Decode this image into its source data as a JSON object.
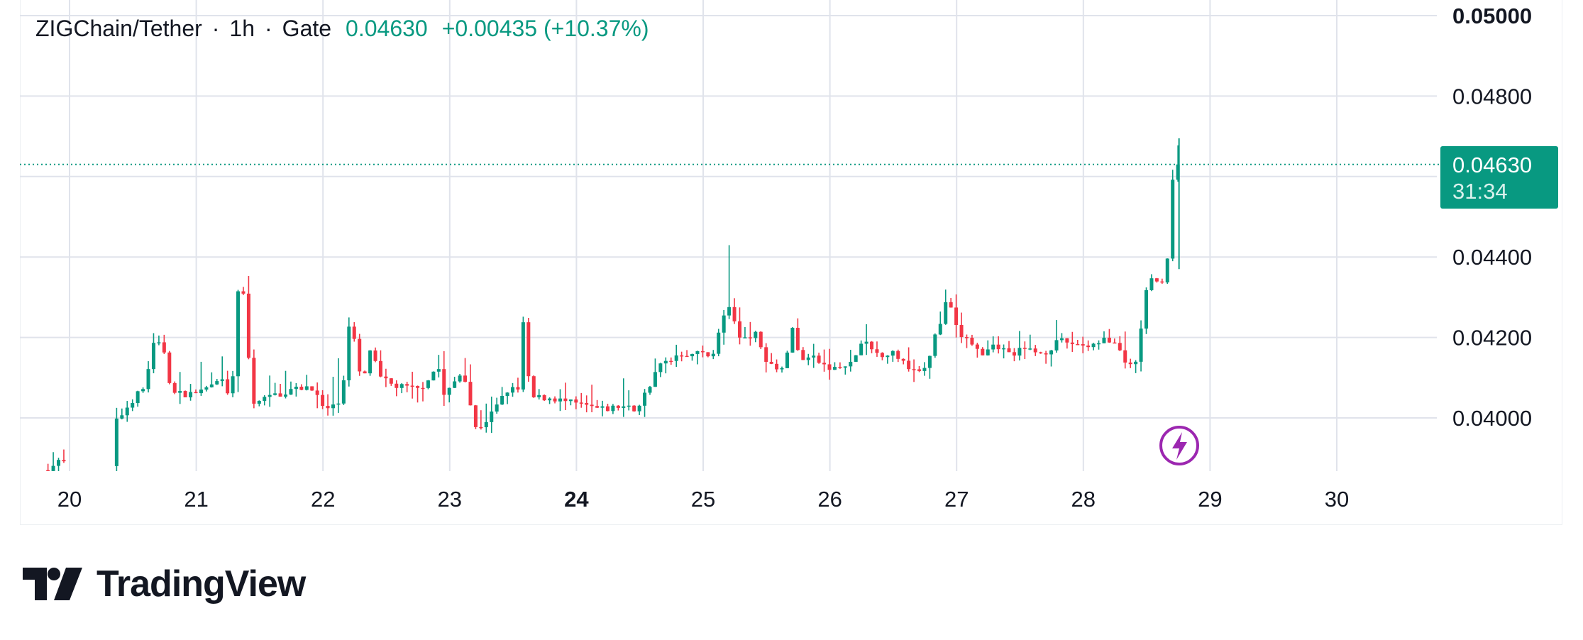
{
  "legend": {
    "symbol": "ZIGChain/Tether",
    "interval": "1h",
    "exchange": "Gate",
    "last_price": "0.04630",
    "change": "+0.00435 (+10.37%)",
    "separator": "·"
  },
  "price_label": {
    "price": "0.04630",
    "countdown": "31:34"
  },
  "brand": {
    "name": "TradingView"
  },
  "colors": {
    "up": "#089981",
    "down": "#f23645",
    "grid": "#e0e3eb",
    "text": "#131722",
    "event_marker": "#9c27b0"
  },
  "icons": {
    "event_marker": "lightning-bolt-icon",
    "logo": "tradingview-logo-icon"
  },
  "chart_data": {
    "type": "candlestick",
    "pair": "ZIGChain/Tether",
    "interval": "1h",
    "exchange": "Gate",
    "x_tick_labels": [
      "20",
      "21",
      "22",
      "23",
      "24",
      "25",
      "26",
      "27",
      "28",
      "29",
      "30"
    ],
    "x_tick_bold": "24",
    "y_tick_labels": [
      "0.04000",
      "0.04200",
      "0.04400",
      "0.04800",
      "0.05000"
    ],
    "y_tick_bold": "0.05000",
    "ylim": [
      0.0386,
      0.05
    ],
    "xlim": [
      19.8,
      30.8
    ],
    "last_price": 0.0463,
    "grid": true,
    "anchors": [
      [
        19.83,
        0.0387
      ],
      [
        19.95,
        0.0389
      ],
      [
        20.38,
        0.0388
      ],
      [
        20.4,
        0.03985
      ],
      [
        20.55,
        0.0405
      ],
      [
        20.65,
        0.0408
      ],
      [
        20.68,
        0.0418
      ],
      [
        20.78,
        0.0418
      ],
      [
        20.85,
        0.0406
      ],
      [
        21.0,
        0.0406
      ],
      [
        21.1,
        0.0407
      ],
      [
        21.25,
        0.0409
      ],
      [
        21.32,
        0.0403
      ],
      [
        21.36,
        0.0432
      ],
      [
        21.42,
        0.043
      ],
      [
        21.48,
        0.0404
      ],
      [
        21.6,
        0.0405
      ],
      [
        21.8,
        0.0407
      ],
      [
        21.95,
        0.0408
      ],
      [
        22.05,
        0.0402
      ],
      [
        22.15,
        0.0403
      ],
      [
        22.2,
        0.0408
      ],
      [
        22.24,
        0.0423
      ],
      [
        22.3,
        0.0418
      ],
      [
        22.35,
        0.0407
      ],
      [
        22.42,
        0.0418
      ],
      [
        22.48,
        0.041
      ],
      [
        22.6,
        0.0408
      ],
      [
        22.8,
        0.0407
      ],
      [
        22.95,
        0.0413
      ],
      [
        23.0,
        0.0405
      ],
      [
        23.08,
        0.0409
      ],
      [
        23.15,
        0.0412
      ],
      [
        23.2,
        0.0404
      ],
      [
        23.25,
        0.0397
      ],
      [
        23.35,
        0.04
      ],
      [
        23.5,
        0.0407
      ],
      [
        23.58,
        0.0407
      ],
      [
        23.62,
        0.0424
      ],
      [
        23.66,
        0.041
      ],
      [
        23.7,
        0.0405
      ],
      [
        23.85,
        0.0405
      ],
      [
        23.95,
        0.0404
      ],
      [
        24.1,
        0.0403
      ],
      [
        24.25,
        0.0402
      ],
      [
        24.4,
        0.0403
      ],
      [
        24.5,
        0.0402
      ],
      [
        24.55,
        0.0404
      ],
      [
        24.7,
        0.0413
      ],
      [
        24.85,
        0.0416
      ],
      [
        25.0,
        0.0416
      ],
      [
        25.12,
        0.0416
      ],
      [
        25.2,
        0.0425
      ],
      [
        25.25,
        0.0428
      ],
      [
        25.32,
        0.042
      ],
      [
        25.45,
        0.0421
      ],
      [
        25.55,
        0.0414
      ],
      [
        25.68,
        0.0412
      ],
      [
        25.74,
        0.0423
      ],
      [
        25.8,
        0.0415
      ],
      [
        25.9,
        0.0415
      ],
      [
        26.05,
        0.0412
      ],
      [
        26.2,
        0.0413
      ],
      [
        26.3,
        0.0419
      ],
      [
        26.4,
        0.0416
      ],
      [
        26.55,
        0.0416
      ],
      [
        26.7,
        0.0412
      ],
      [
        26.8,
        0.0413
      ],
      [
        26.87,
        0.042
      ],
      [
        26.93,
        0.0425
      ],
      [
        26.97,
        0.043
      ],
      [
        27.05,
        0.0421
      ],
      [
        27.15,
        0.0419
      ],
      [
        27.25,
        0.0415
      ],
      [
        27.35,
        0.0418
      ],
      [
        27.45,
        0.0416
      ],
      [
        27.6,
        0.0417
      ],
      [
        27.72,
        0.0416
      ],
      [
        27.85,
        0.0419
      ],
      [
        28.1,
        0.0418
      ],
      [
        28.2,
        0.042
      ],
      [
        28.32,
        0.0417
      ],
      [
        28.38,
        0.0413
      ],
      [
        28.47,
        0.0414
      ],
      [
        28.52,
        0.043
      ],
      [
        28.58,
        0.0434
      ],
      [
        28.64,
        0.0433
      ],
      [
        28.7,
        0.0437
      ],
      [
        28.755,
        0.0463
      ]
    ]
  }
}
